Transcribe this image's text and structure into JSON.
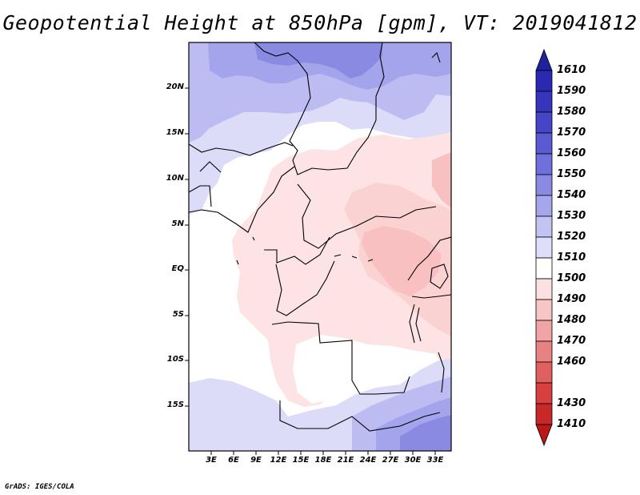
{
  "title": "Geopotential Height at 850hPa [gpm], VT: 2019041812",
  "credit": "GrADS: IGES/COLA",
  "map": {
    "latitude_labels": [
      "20N",
      "15N",
      "10N",
      "5N",
      "EQ",
      "5S",
      "10S",
      "15S"
    ],
    "longitude_labels": [
      "3E",
      "6E",
      "9E",
      "12E",
      "15E",
      "18E",
      "21E",
      "24E",
      "27E",
      "30E",
      "33E"
    ]
  },
  "colorbar": {
    "levels": [
      "1610",
      "1590",
      "1580",
      "1570",
      "1560",
      "1550",
      "1540",
      "1530",
      "1520",
      "1510",
      "1500",
      "1490",
      "1480",
      "1470",
      "1460",
      "1430",
      "1410"
    ],
    "colors": [
      "#2020a0",
      "#2a2ab0",
      "#3535bd",
      "#4545c8",
      "#5a5ad2",
      "#7070dc",
      "#8a8ae4",
      "#a6a6ec",
      "#c4c4f4",
      "#dedefa",
      "#fde0e0",
      "#f8c6c6",
      "#f0a4a4",
      "#e88282",
      "#e06060",
      "#d84040",
      "#c82828",
      "#b81818"
    ]
  },
  "colors": {
    "light_blue": "#dadaf8",
    "mid_blue": "#b8b8f0",
    "blue": "#a0a0ea",
    "deep_blue": "#8a8ae2",
    "pale_pink": "#fde3e3",
    "pink": "#fbd0d0",
    "deep_pink": "#f8bcbc"
  }
}
